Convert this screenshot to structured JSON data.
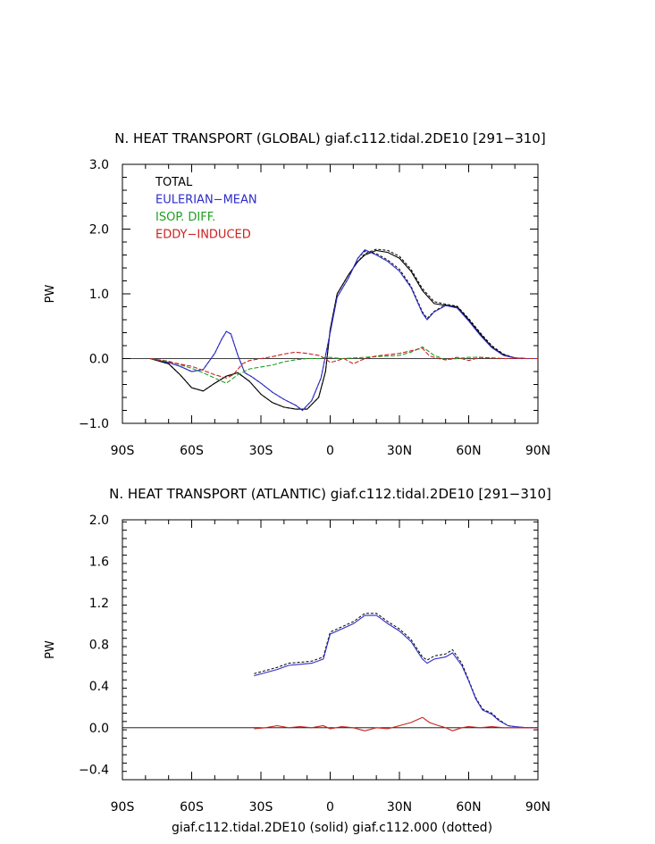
{
  "chart_data": [
    {
      "type": "line",
      "title": "N. HEAT TRANSPORT (GLOBAL) giaf.c112.tidal.2DE10 [291−310]",
      "ylabel": "PW",
      "xlabel": "",
      "xlim": [
        -90,
        90
      ],
      "ylim": [
        -1.0,
        3.0
      ],
      "xticks": [
        -90,
        -60,
        -30,
        0,
        30,
        60,
        90
      ],
      "xtick_labels": [
        "90S",
        "60S",
        "30S",
        "0",
        "30N",
        "60N",
        "90N"
      ],
      "yticks": [
        -1.0,
        0.0,
        1.0,
        2.0,
        3.0
      ],
      "ytick_labels": [
        "−1.0",
        "0.0",
        "1.0",
        "2.0",
        "3.0"
      ],
      "legend_position": "top-left",
      "grid": false,
      "series": [
        {
          "name": "TOTAL",
          "color": "#000000",
          "x": [
            -78,
            -70,
            -65,
            -60,
            -55,
            -50,
            -45,
            -40,
            -35,
            -30,
            -25,
            -20,
            -15,
            -10,
            -5,
            -2,
            0,
            3,
            8,
            12,
            15,
            20,
            25,
            30,
            35,
            40,
            45,
            50,
            55,
            60,
            65,
            70,
            75,
            80,
            85,
            90
          ],
          "y": [
            0,
            -0.08,
            -0.25,
            -0.45,
            -0.5,
            -0.38,
            -0.27,
            -0.22,
            -0.35,
            -0.55,
            -0.68,
            -0.75,
            -0.78,
            -0.78,
            -0.6,
            -0.2,
            0.45,
            1.0,
            1.3,
            1.5,
            1.6,
            1.67,
            1.64,
            1.55,
            1.35,
            1.05,
            0.85,
            0.82,
            0.8,
            0.6,
            0.38,
            0.18,
            0.06,
            0.01,
            0,
            0
          ],
          "dotted_y": [
            0,
            -0.08,
            -0.25,
            -0.45,
            -0.5,
            -0.38,
            -0.27,
            -0.22,
            -0.35,
            -0.55,
            -0.68,
            -0.75,
            -0.78,
            -0.78,
            -0.6,
            -0.2,
            0.45,
            1.0,
            1.3,
            1.5,
            1.62,
            1.69,
            1.67,
            1.58,
            1.38,
            1.08,
            0.88,
            0.84,
            0.81,
            0.62,
            0.4,
            0.2,
            0.07,
            0.01,
            0,
            0
          ]
        },
        {
          "name": "EULERIAN−MEAN",
          "color": "#2c2ccc",
          "x": [
            -78,
            -70,
            -65,
            -60,
            -55,
            -50,
            -47,
            -45,
            -43,
            -40,
            -37,
            -34,
            -30,
            -25,
            -20,
            -15,
            -12,
            -8,
            -4,
            0,
            3,
            8,
            12,
            15,
            20,
            25,
            30,
            35,
            40,
            42,
            45,
            50,
            55,
            60,
            65,
            70,
            75,
            80,
            85,
            90
          ],
          "y": [
            0,
            -0.06,
            -0.12,
            -0.2,
            -0.17,
            0.08,
            0.3,
            0.42,
            0.38,
            0.05,
            -0.22,
            -0.28,
            -0.38,
            -0.52,
            -0.63,
            -0.72,
            -0.8,
            -0.65,
            -0.3,
            0.4,
            0.95,
            1.25,
            1.55,
            1.68,
            1.6,
            1.5,
            1.35,
            1.1,
            0.7,
            0.6,
            0.72,
            0.82,
            0.78,
            0.58,
            0.36,
            0.17,
            0.05,
            0.01,
            0,
            0
          ],
          "dotted_y": [
            0,
            -0.06,
            -0.12,
            -0.2,
            -0.17,
            0.08,
            0.3,
            0.42,
            0.38,
            0.05,
            -0.22,
            -0.28,
            -0.38,
            -0.52,
            -0.63,
            -0.72,
            -0.8,
            -0.65,
            -0.3,
            0.4,
            0.95,
            1.25,
            1.55,
            1.66,
            1.62,
            1.52,
            1.38,
            1.12,
            0.72,
            0.62,
            0.73,
            0.83,
            0.79,
            0.59,
            0.37,
            0.18,
            0.05,
            0.01,
            0,
            0
          ]
        },
        {
          "name": "ISOP. DIFF.",
          "color": "#1ea01e",
          "x": [
            -78,
            -70,
            -60,
            -55,
            -50,
            -45,
            -40,
            -35,
            -30,
            -25,
            -20,
            -15,
            -10,
            -5,
            0,
            5,
            10,
            20,
            30,
            35,
            40,
            45,
            50,
            55,
            60,
            65,
            70,
            75,
            80,
            90
          ],
          "y": [
            0,
            -0.04,
            -0.15,
            -0.22,
            -0.3,
            -0.38,
            -0.25,
            -0.16,
            -0.13,
            -0.1,
            -0.05,
            -0.02,
            0.0,
            0.0,
            0.02,
            0.0,
            0.01,
            0.03,
            0.05,
            0.1,
            0.18,
            0.05,
            -0.02,
            0.0,
            0.02,
            0.02,
            0.01,
            0.0,
            0.0,
            0.0
          ]
        },
        {
          "name": "EDDY−INDUCED",
          "color": "#cc2020",
          "x": [
            -78,
            -70,
            -60,
            -55,
            -50,
            -45,
            -42,
            -38,
            -35,
            -30,
            -25,
            -20,
            -15,
            -10,
            -5,
            -2,
            0,
            3,
            6,
            10,
            15,
            20,
            25,
            30,
            35,
            40,
            43,
            47,
            50,
            55,
            60,
            65,
            70,
            75,
            80,
            90
          ],
          "y": [
            0,
            -0.05,
            -0.12,
            -0.18,
            -0.25,
            -0.3,
            -0.25,
            -0.08,
            -0.03,
            0.0,
            0.03,
            0.07,
            0.1,
            0.08,
            0.05,
            0.0,
            -0.06,
            -0.03,
            0.0,
            -0.08,
            0.0,
            0.04,
            0.06,
            0.08,
            0.12,
            0.16,
            0.04,
            0.0,
            -0.02,
            0.02,
            -0.03,
            0.02,
            0.01,
            0.0,
            0.0,
            0.0
          ]
        }
      ]
    },
    {
      "type": "line",
      "title": "N. HEAT TRANSPORT (ATLANTIC) giaf.c112.tidal.2DE10 [291−310]",
      "ylabel": "PW",
      "xlabel": "giaf.c112.tidal.2DE10 (solid) giaf.c112.000 (dotted)",
      "xlim": [
        -90,
        90
      ],
      "ylim": [
        -0.5,
        2.0
      ],
      "xticks": [
        -90,
        -60,
        -30,
        0,
        30,
        60,
        90
      ],
      "xtick_labels": [
        "90S",
        "60S",
        "30S",
        "0",
        "30N",
        "60N",
        "90N"
      ],
      "yticks": [
        -0.4,
        0.0,
        0.4,
        0.8,
        1.2,
        1.6,
        2.0
      ],
      "ytick_labels": [
        "−0.4",
        "0.0",
        "0.4",
        "0.8",
        "1.2",
        "1.6",
        "2.0"
      ],
      "grid": false,
      "series": [
        {
          "color": "#2c2ccc",
          "x": [
            -33,
            -28,
            -23,
            -18,
            -13,
            -8,
            -3,
            0,
            5,
            10,
            15,
            20,
            22,
            25,
            30,
            35,
            40,
            42,
            45,
            50,
            53,
            57,
            60,
            63,
            66,
            70,
            73,
            77,
            80,
            85,
            90
          ],
          "y": [
            0.5,
            0.53,
            0.56,
            0.6,
            0.61,
            0.62,
            0.66,
            0.9,
            0.95,
            1.0,
            1.08,
            1.08,
            1.05,
            1.0,
            0.93,
            0.83,
            0.66,
            0.62,
            0.66,
            0.68,
            0.72,
            0.6,
            0.45,
            0.28,
            0.17,
            0.13,
            0.07,
            0.02,
            0.01,
            0.0,
            0.0
          ],
          "dotted_y": [
            0.52,
            0.55,
            0.58,
            0.62,
            0.63,
            0.64,
            0.68,
            0.92,
            0.97,
            1.02,
            1.1,
            1.1,
            1.07,
            1.02,
            0.95,
            0.85,
            0.68,
            0.65,
            0.69,
            0.71,
            0.75,
            0.62,
            0.46,
            0.29,
            0.18,
            0.14,
            0.08,
            0.02,
            0.01,
            0.0,
            0.0
          ]
        },
        {
          "color": "#cc2020",
          "x": [
            -33,
            -28,
            -23,
            -18,
            -13,
            -8,
            -3,
            0,
            5,
            10,
            15,
            20,
            25,
            30,
            35,
            38,
            40,
            43,
            47,
            50,
            53,
            57,
            60,
            65,
            70,
            75,
            80,
            90
          ],
          "y": [
            -0.01,
            0.0,
            0.02,
            0.0,
            0.01,
            0.0,
            0.02,
            -0.01,
            0.01,
            0.0,
            -0.03,
            0.0,
            -0.01,
            0.02,
            0.05,
            0.08,
            0.1,
            0.05,
            0.02,
            0.0,
            -0.03,
            0.0,
            0.01,
            0.0,
            0.01,
            0.0,
            0.0,
            0.0
          ]
        }
      ]
    }
  ]
}
